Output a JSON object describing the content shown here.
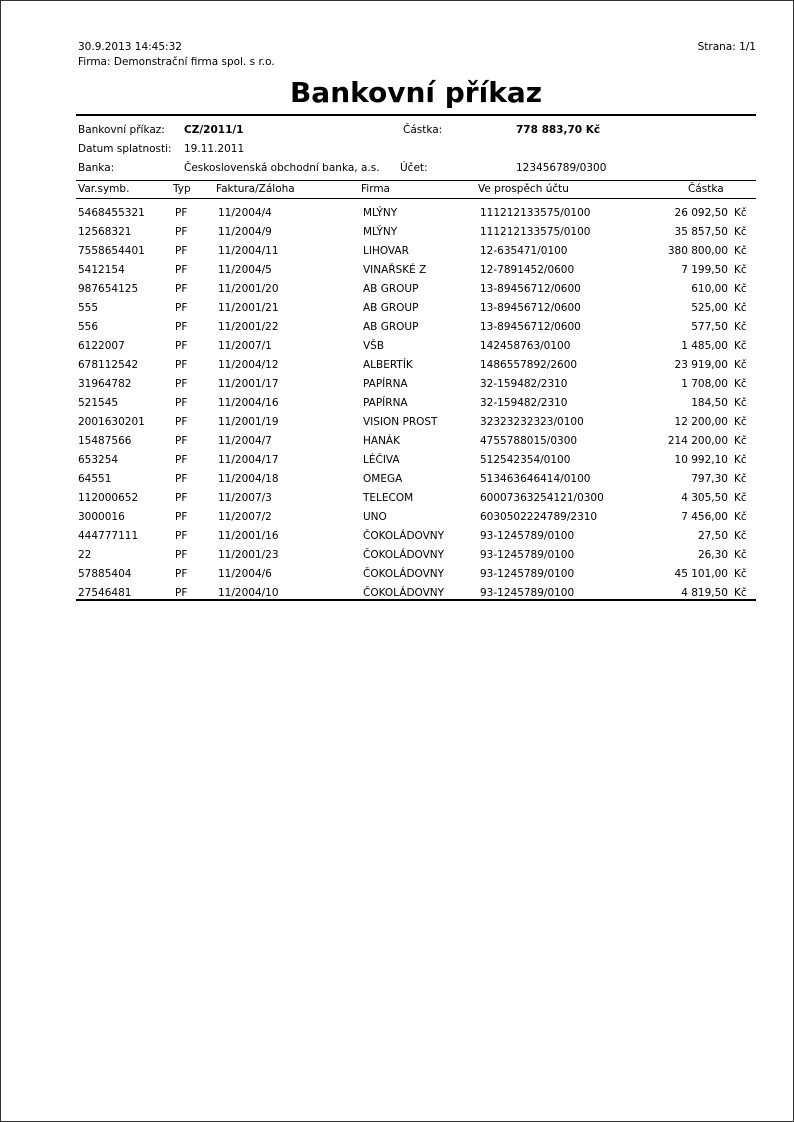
{
  "report": {
    "timestamp": "30.9.2013 14:45:32",
    "company_line": "Firma: Demonstrační firma spol. s r.o.",
    "page": "Strana: 1/1",
    "title": "Bankovní příkaz"
  },
  "order": {
    "order_label": "Bankovní příkaz:",
    "order_value": "CZ/2011/1",
    "amount_label": "Částka:",
    "amount_value": "778 883,70 Kč",
    "due_label": "Datum splatnosti:",
    "due_value": "19.11.2011",
    "bank_label": "Banka:",
    "bank_value": "Československá obchodní banka, a.s.",
    "account_label": "Účet:",
    "account_value": "123456789/0300"
  },
  "table": {
    "headers": {
      "var": "Var.symb.",
      "typ": "Typ",
      "faktura": "Faktura/Záloha",
      "firma": "Firma",
      "ucet": "Ve prospěch účtu",
      "castka": "Částka"
    },
    "currency": "Kč",
    "rows": [
      [
        "5468455321",
        "PF",
        "11/2004/4",
        "MLÝNY",
        "111212133575/0100",
        "26 092,50"
      ],
      [
        "12568321",
        "PF",
        "11/2004/9",
        "MLÝNY",
        "111212133575/0100",
        "35 857,50"
      ],
      [
        "7558654401",
        "PF",
        "11/2004/11",
        "LIHOVAR",
        "12-635471/0100",
        "380 800,00"
      ],
      [
        "5412154",
        "PF",
        "11/2004/5",
        "VINAŘSKÉ Z",
        "12-7891452/0600",
        "7 199,50"
      ],
      [
        "987654125",
        "PF",
        "11/2001/20",
        "AB GROUP",
        "13-89456712/0600",
        "610,00"
      ],
      [
        "555",
        "PF",
        "11/2001/21",
        "AB GROUP",
        "13-89456712/0600",
        "525,00"
      ],
      [
        "556",
        "PF",
        "11/2001/22",
        "AB GROUP",
        "13-89456712/0600",
        "577,50"
      ],
      [
        "6122007",
        "PF",
        "11/2007/1",
        "VŠB",
        "142458763/0100",
        "1 485,00"
      ],
      [
        "678112542",
        "PF",
        "11/2004/12",
        "ALBERTÍK",
        "1486557892/2600",
        "23 919,00"
      ],
      [
        "31964782",
        "PF",
        "11/2001/17",
        "PAPÍRNA",
        "32-159482/2310",
        "1 708,00"
      ],
      [
        "521545",
        "PF",
        "11/2004/16",
        "PAPÍRNA",
        "32-159482/2310",
        "184,50"
      ],
      [
        "2001630201",
        "PF",
        "11/2001/19",
        "VISION PROST",
        "32323232323/0100",
        "12 200,00"
      ],
      [
        "15487566",
        "PF",
        "11/2004/7",
        "HANÁK",
        "4755788015/0300",
        "214 200,00"
      ],
      [
        "653254",
        "PF",
        "11/2004/17",
        "LÉČIVA",
        "512542354/0100",
        "10 992,10"
      ],
      [
        "64551",
        "PF",
        "11/2004/18",
        "OMEGA",
        "513463646414/0100",
        "797,30"
      ],
      [
        "112000652",
        "PF",
        "11/2007/3",
        "TELECOM",
        "60007363254121/0300",
        "4 305,50"
      ],
      [
        "3000016",
        "PF",
        "11/2007/2",
        "UNO",
        "6030502224789/2310",
        "7 456,00"
      ],
      [
        "444777111",
        "PF",
        "11/2001/16",
        "ČOKOLÁDOVNY",
        "93-1245789/0100",
        "27,50"
      ],
      [
        "22",
        "PF",
        "11/2001/23",
        "ČOKOLÁDOVNY",
        "93-1245789/0100",
        "26,30"
      ],
      [
        "57885404",
        "PF",
        "11/2004/6",
        "ČOKOLÁDOVNY",
        "93-1245789/0100",
        "45 101,00"
      ],
      [
        "27546481",
        "PF",
        "11/2004/10",
        "ČOKOLÁDOVNY",
        "93-1245789/0100",
        "4 819,50"
      ]
    ]
  }
}
